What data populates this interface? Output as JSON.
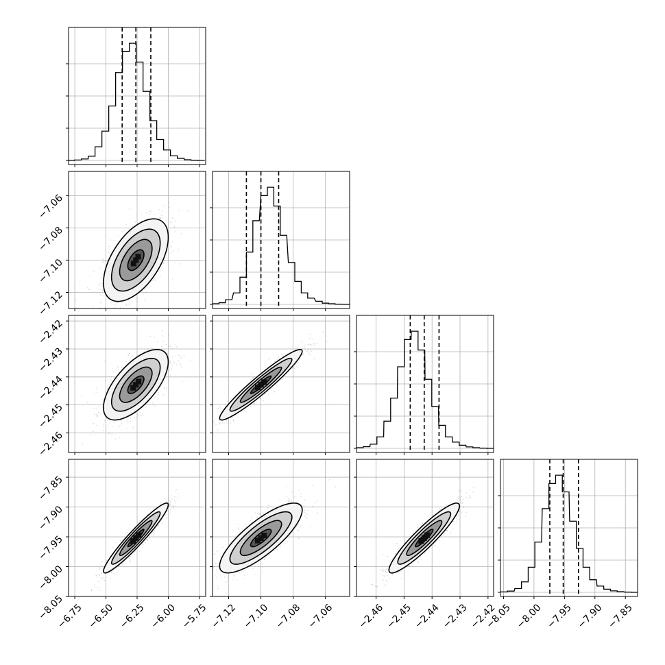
{
  "chart_data": {
    "type": "corner",
    "parameters": [
      {
        "xlim": [
          -6.8,
          -5.7
        ],
        "ylim": [
          -7.13,
          -7.045
        ],
        "xticks": [
          -6.75,
          -6.5,
          -6.25,
          -6.0,
          -5.75
        ],
        "xtick_labels": [
          "−6.75",
          "−6.50",
          "−6.25",
          "−6.00",
          "−5.75"
        ],
        "yticks": [
          -7.12,
          -7.1,
          -7.08,
          -7.06
        ],
        "ytick_labels": [
          "−7.12",
          "−7.10",
          "−7.08",
          "−7.06"
        ],
        "quantiles": [
          -6.37,
          -6.26,
          -6.14
        ],
        "hist_centers": [
          -6.78,
          -6.725,
          -6.67,
          -6.615,
          -6.56,
          -6.505,
          -6.45,
          -6.395,
          -6.34,
          -6.285,
          -6.23,
          -6.175,
          -6.12,
          -6.065,
          -6.01,
          -5.955,
          -5.9,
          -5.845,
          -5.79,
          -5.735
        ],
        "hist_values": [
          0,
          2,
          7,
          20,
          65,
          140,
          260,
          420,
          520,
          560,
          470,
          330,
          190,
          100,
          50,
          22,
          10,
          3,
          1,
          0
        ]
      },
      {
        "xlim": [
          -7.13,
          -7.045
        ],
        "ylim": [
          -7.13,
          -7.045
        ],
        "xticks": [
          -7.12,
          -7.1,
          -7.08,
          -7.06
        ],
        "xtick_labels": [
          "−7.12",
          "−7.10",
          "−7.08",
          "−7.06"
        ],
        "yticks": [
          -7.12,
          -7.1,
          -7.08,
          -7.06
        ],
        "ytick_labels": [
          "−7.12",
          "−7.10",
          "−7.08",
          "−7.06"
        ],
        "quantiles": [
          -7.109,
          -7.1,
          -7.089
        ],
        "hist_centers": [
          -7.128,
          -7.124,
          -7.12,
          -7.115,
          -7.111,
          -7.107,
          -7.103,
          -7.098,
          -7.094,
          -7.09,
          -7.086,
          -7.081,
          -7.077,
          -7.073,
          -7.069,
          -7.064,
          -7.06,
          -7.056,
          -7.052,
          -7.047
        ],
        "hist_values": [
          3,
          8,
          22,
          55,
          130,
          250,
          400,
          520,
          560,
          470,
          330,
          200,
          110,
          55,
          30,
          15,
          6,
          3,
          1,
          0
        ]
      },
      {
        "xlim": [
          -2.467,
          -2.418
        ],
        "ylim": [
          -2.467,
          -2.418
        ],
        "xticks": [
          -2.46,
          -2.45,
          -2.44,
          -2.43,
          -2.42
        ],
        "xtick_labels": [
          "−2.46",
          "−2.45",
          "−2.44",
          "−2.43",
          "−2.42"
        ],
        "yticks": [
          -2.46,
          -2.45,
          -2.44,
          -2.43,
          -2.42
        ],
        "ytick_labels": [
          "−2.46",
          "−2.45",
          "−2.44",
          "−2.43",
          "−2.42"
        ],
        "quantiles": [
          -2.4478,
          -2.4428,
          -2.4375
        ],
        "hist_centers": [
          -2.4658,
          -2.4634,
          -2.4609,
          -2.4585,
          -2.456,
          -2.4536,
          -2.4511,
          -2.4487,
          -2.4462,
          -2.4438,
          -2.4413,
          -2.4389,
          -2.4364,
          -2.434,
          -2.4315,
          -2.4291,
          -2.4266,
          -2.4242,
          -2.4217,
          -2.4193
        ],
        "hist_values": [
          3,
          8,
          20,
          55,
          130,
          240,
          390,
          520,
          560,
          470,
          330,
          200,
          110,
          55,
          30,
          15,
          7,
          3,
          1,
          0
        ]
      },
      {
        "xlim": [
          -8.055,
          -7.83
        ],
        "ylim": [
          -8.05,
          -7.82
        ],
        "xticks": [
          -8.05,
          -8.0,
          -7.95,
          -7.9,
          -7.85
        ],
        "xtick_labels": [
          "−8.05",
          "−8.00",
          "−7.95",
          "−7.90",
          "−7.85"
        ],
        "yticks": [
          -8.05,
          -8.0,
          -7.95,
          -7.9,
          -7.85
        ],
        "ytick_labels": [
          "−8.05",
          "−8.00",
          "−7.95",
          "−7.90",
          "−7.85"
        ],
        "quantiles": [
          -7.974,
          -7.952,
          -7.927
        ],
        "hist_centers": [
          -8.049,
          -8.038,
          -8.026,
          -8.015,
          -8.004,
          -7.993,
          -7.981,
          -7.97,
          -7.959,
          -7.948,
          -7.936,
          -7.925,
          -7.914,
          -7.903,
          -7.891,
          -7.88,
          -7.869,
          -7.858,
          -7.846,
          -7.835
        ],
        "hist_values": [
          2,
          6,
          18,
          50,
          120,
          240,
          400,
          520,
          560,
          480,
          340,
          210,
          120,
          60,
          30,
          15,
          7,
          3,
          1,
          0
        ]
      }
    ],
    "pairs": [
      {
        "row": 1,
        "col": 0,
        "mean": [
          -6.26,
          -7.1
        ],
        "sd": [
          0.13,
          0.0128
        ],
        "rho": 0.55
      },
      {
        "row": 2,
        "col": 0,
        "mean": [
          -6.26,
          -2.4428
        ],
        "sd": [
          0.13,
          0.0063
        ],
        "rho": 0.65
      },
      {
        "row": 2,
        "col": 1,
        "mean": [
          -7.1,
          -2.4428
        ],
        "sd": [
          0.0128,
          0.0063
        ],
        "rho": 0.95
      },
      {
        "row": 3,
        "col": 0,
        "mean": [
          -6.26,
          -7.952
        ],
        "sd": [
          0.13,
          0.0293
        ],
        "rho": 0.95
      },
      {
        "row": 3,
        "col": 1,
        "mean": [
          -7.1,
          -7.952
        ],
        "sd": [
          0.0128,
          0.0293
        ],
        "rho": 0.8
      },
      {
        "row": 3,
        "col": 2,
        "mean": [
          -2.4428,
          -7.952
        ],
        "sd": [
          0.0063,
          0.0293
        ],
        "rho": 0.92
      }
    ],
    "contour_levels_sigma": [
      0.5,
      1.0,
      1.5,
      2.0
    ],
    "grid": true,
    "colors": {
      "hist": "#000000",
      "quantile": "#000000",
      "points": "#7f7f7f",
      "grid": "#b0b0b0",
      "frame": "#000000"
    }
  }
}
